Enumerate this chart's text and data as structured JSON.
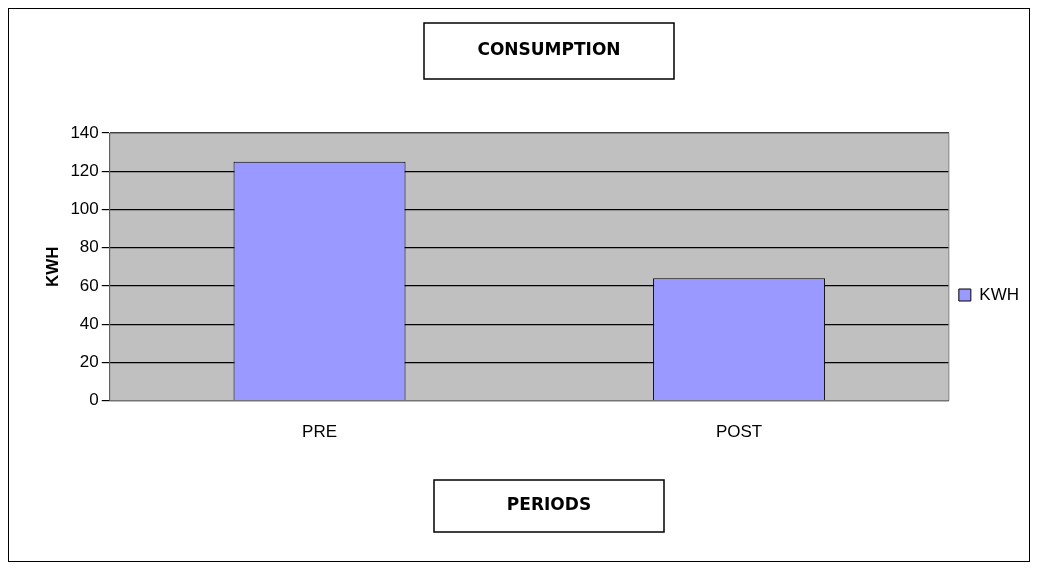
{
  "chart_data": {
    "type": "bar",
    "title": "CONSUMPTION",
    "xlabel": "PERIODS",
    "ylabel": "KWH",
    "categories": [
      "PRE",
      "POST"
    ],
    "series": [
      {
        "name": "KWH",
        "color": "#9999ff",
        "values": [
          125,
          64
        ]
      }
    ],
    "ylim": [
      0,
      140
    ],
    "yticks": [
      0,
      20,
      40,
      60,
      80,
      100,
      120,
      140
    ],
    "grid": "y",
    "legend": "right"
  }
}
